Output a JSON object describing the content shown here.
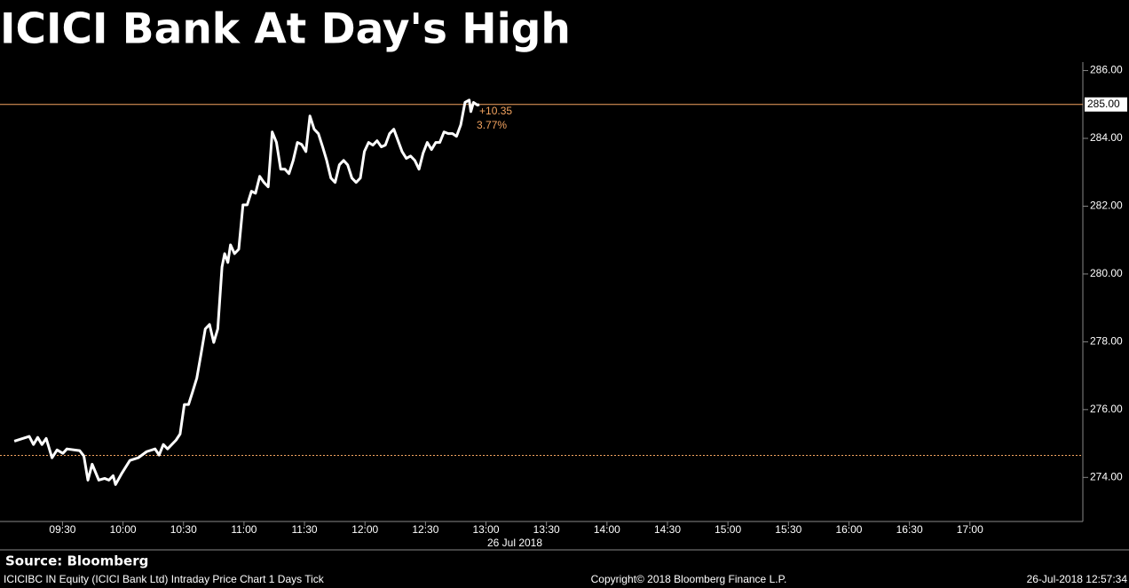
{
  "chart_data": {
    "type": "line",
    "title": "ICICI Bank At Day's High",
    "color": "#ffffff",
    "x": [
      546.1,
      553.5,
      555.6,
      557.7,
      559.8,
      561.9,
      564.8,
      567.3,
      570.2,
      572.2,
      578.5,
      580.6,
      582.6,
      584.7,
      588.0,
      590.9,
      593.0,
      595.1,
      596.3,
      599.2,
      603.4,
      607.6,
      611.7,
      615.9,
      617.9,
      620.0,
      622.1,
      626.3,
      628.3,
      630.4,
      632.5,
      634.6,
      636.6,
      638.7,
      640.8,
      642.9,
      645.0,
      647.0,
      649.1,
      650.4,
      652.0,
      653.3,
      655.3,
      657.4,
      659.5,
      661.6,
      663.7,
      665.7,
      667.8,
      669.9,
      672.0,
      674.0,
      676.1,
      678.2,
      680.3,
      682.3,
      684.4,
      686.5,
      688.6,
      690.7,
      692.7,
      694.8,
      696.9,
      699.0,
      701.0,
      703.1,
      705.2,
      707.3,
      709.4,
      711.4,
      713.5,
      715.6,
      717.7,
      719.7,
      721.8,
      723.9,
      726.0,
      728.1,
      730.1,
      732.2,
      734.3,
      736.4,
      738.4,
      740.5,
      742.6,
      744.7,
      746.8,
      748.8,
      750.9,
      753.0,
      755.1,
      757.1,
      759.2,
      761.3,
      763.4,
      765.4,
      767.5,
      769.6,
      771.7,
      772.5,
      773.8,
      775.8,
      776.7
    ],
    "values": [
      275.07,
      275.21,
      274.97,
      275.18,
      274.97,
      275.15,
      274.58,
      274.81,
      274.71,
      274.84,
      274.79,
      274.63,
      273.92,
      274.39,
      273.92,
      273.97,
      273.92,
      274.05,
      273.79,
      274.1,
      274.5,
      274.58,
      274.76,
      274.84,
      274.66,
      274.97,
      274.84,
      275.1,
      275.28,
      276.15,
      276.15,
      276.54,
      276.93,
      277.64,
      278.38,
      278.51,
      277.98,
      278.38,
      280.21,
      280.6,
      280.34,
      280.86,
      280.6,
      280.73,
      282.04,
      282.04,
      282.44,
      282.38,
      282.88,
      282.7,
      282.57,
      284.19,
      283.88,
      283.09,
      283.09,
      282.96,
      283.35,
      283.88,
      283.82,
      283.61,
      284.66,
      284.27,
      284.14,
      283.75,
      283.35,
      282.83,
      282.7,
      283.22,
      283.35,
      283.22,
      282.83,
      282.7,
      282.83,
      283.61,
      283.88,
      283.8,
      283.93,
      283.75,
      283.8,
      284.14,
      284.27,
      283.93,
      283.61,
      283.41,
      283.48,
      283.35,
      283.09,
      283.56,
      283.88,
      283.67,
      283.88,
      283.88,
      284.19,
      284.14,
      284.14,
      284.06,
      284.4,
      285.06,
      285.13,
      284.79,
      285.06,
      284.98,
      285.0
    ],
    "xlim": [
      539,
      1076
    ],
    "ylim": [
      272.7,
      286.25
    ],
    "xticks": [
      {
        "value": 570,
        "label": "09:30"
      },
      {
        "value": 600,
        "label": "10:00"
      },
      {
        "value": 630,
        "label": "10:30"
      },
      {
        "value": 660,
        "label": "11:00"
      },
      {
        "value": 690,
        "label": "11:30"
      },
      {
        "value": 720,
        "label": "12:00"
      },
      {
        "value": 750,
        "label": "12:30"
      },
      {
        "value": 780,
        "label": "13:00"
      },
      {
        "value": 810,
        "label": "13:30"
      },
      {
        "value": 840,
        "label": "14:00"
      },
      {
        "value": 870,
        "label": "14:30"
      },
      {
        "value": 900,
        "label": "15:00"
      },
      {
        "value": 930,
        "label": "15:30"
      },
      {
        "value": 960,
        "label": "16:00"
      },
      {
        "value": 990,
        "label": "16:30"
      },
      {
        "value": 1020,
        "label": "17:00"
      }
    ],
    "yticks": [
      {
        "value": 274,
        "label": "274.00"
      },
      {
        "value": 276,
        "label": "276.00"
      },
      {
        "value": 278,
        "label": "278.00"
      },
      {
        "value": 280,
        "label": "280.00"
      },
      {
        "value": 282,
        "label": "282.00"
      },
      {
        "value": 284,
        "label": "284.00"
      },
      {
        "value": 286,
        "label": "286.00"
      }
    ],
    "x_date_label": "26 Jul 2018",
    "last_price": {
      "value": 285,
      "label": "285.00"
    },
    "prev_close": 274.65,
    "reference_color": "#f4a460",
    "change": {
      "value": 10.35,
      "label": "+10.35"
    },
    "change_pct": {
      "value": 3.77,
      "label": "3.77%"
    },
    "grid": false,
    "source": "Source: Bloomberg",
    "footer_left": "ICICIBC IN Equity (ICICI Bank Ltd) Intraday Price Chart 1 Days  Tick",
    "footer_center": "Copyright© 2018 Bloomberg Finance L.P.",
    "footer_right": "26-Jul-2018 12:57:34"
  }
}
